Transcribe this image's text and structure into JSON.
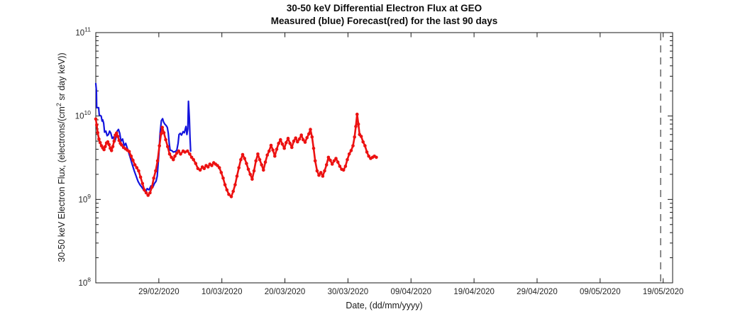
{
  "chart_data": {
    "type": "line",
    "title": "30-50 keV Differential Electron Flux at GEO",
    "subtitle": "Measured (blue) Forecast(red) for the last 90 days",
    "xlabel": "Date, (dd/mm/yyyy)",
    "ylabel": "30-50 keV Electron Flux, (electrons/(cm^2 sr day keV))",
    "ylabel_parts": {
      "pre": "30-50 keV Electron Flux, (electrons/(cm",
      "sup": "2",
      "post": " sr day keV))"
    },
    "grid": false,
    "legend_position": "none (legend encoded in subtitle)",
    "x_axis": {
      "label": "Date, (dd/mm/yyyy)",
      "epoch": "day 0 = 19/02/2020 (start of the 90-day window)",
      "domain_days": [
        0,
        91.5
      ],
      "tick_days": [
        10,
        20,
        30,
        40,
        50,
        60,
        70,
        80,
        90
      ],
      "tick_labels": [
        "29/02/2020",
        "10/03/2020",
        "20/03/2020",
        "30/03/2020",
        "09/04/2020",
        "19/04/2020",
        "29/04/2020",
        "09/05/2020",
        "19/05/2020"
      ]
    },
    "y_axis": {
      "scale": "log10",
      "exponent_range": [
        8,
        11
      ],
      "tick_exponents": [
        8,
        9,
        10,
        11
      ],
      "tick_base": "10",
      "minor_tick_multiples": [
        2,
        3,
        4,
        5,
        6,
        7,
        8,
        9
      ],
      "unit": "electrons/(cm^2 sr day keV)"
    },
    "annotations": [
      {
        "type": "vline",
        "day": 89.6,
        "style": "dashed",
        "color": "#404040",
        "dash": [
          10,
          7
        ]
      }
    ],
    "series": [
      {
        "name": "Measured",
        "color_hint": "blue",
        "color": "#1414dd",
        "marker": "line",
        "value_unit": 1000000000.0,
        "points_day_value": [
          [
            0,
            24.5
          ],
          [
            0.1,
            20
          ],
          [
            0.15,
            12.6
          ],
          [
            0.45,
            12.6
          ],
          [
            0.55,
            10.3
          ],
          [
            0.85,
            10
          ],
          [
            1,
            8.7
          ],
          [
            1.1,
            9
          ],
          [
            1.25,
            8.2
          ],
          [
            1.4,
            6.4
          ],
          [
            1.6,
            6.6
          ],
          [
            1.8,
            5.8
          ],
          [
            2,
            6
          ],
          [
            2.2,
            6.6
          ],
          [
            2.4,
            6.2
          ],
          [
            2.6,
            5.4
          ],
          [
            2.8,
            5.6
          ],
          [
            3,
            4.9
          ],
          [
            3.2,
            5.5
          ],
          [
            3.4,
            6.6
          ],
          [
            3.6,
            6.9
          ],
          [
            3.8,
            6.2
          ],
          [
            4,
            5
          ],
          [
            4.25,
            5.3
          ],
          [
            4.5,
            4.4
          ],
          [
            4.75,
            4.7
          ],
          [
            5,
            4.1
          ],
          [
            5.25,
            3.6
          ],
          [
            5.5,
            3.1
          ],
          [
            5.8,
            2.6
          ],
          [
            6.1,
            2.2
          ],
          [
            6.4,
            1.9
          ],
          [
            6.7,
            1.65
          ],
          [
            7,
            1.5
          ],
          [
            7.3,
            1.4
          ],
          [
            7.6,
            1.3
          ],
          [
            7.9,
            1.22
          ],
          [
            8.15,
            1.35
          ],
          [
            8.45,
            1.3
          ],
          [
            8.75,
            1.45
          ],
          [
            9.05,
            1.4
          ],
          [
            9.3,
            1.55
          ],
          [
            9.55,
            1.65
          ],
          [
            9.75,
            1.9
          ],
          [
            10,
            3.5
          ],
          [
            10.2,
            6.2
          ],
          [
            10.4,
            8.8
          ],
          [
            10.6,
            9.3
          ],
          [
            10.75,
            8.5
          ],
          [
            10.95,
            8
          ],
          [
            11.15,
            7.7
          ],
          [
            11.35,
            7.3
          ],
          [
            11.5,
            6.2
          ],
          [
            11.65,
            4.7
          ],
          [
            11.8,
            3.9
          ],
          [
            12.05,
            3.85
          ],
          [
            12.3,
            3.7
          ],
          [
            12.6,
            3.75
          ],
          [
            12.85,
            3.9
          ],
          [
            13.05,
            4.7
          ],
          [
            13.2,
            6
          ],
          [
            13.4,
            6.2
          ],
          [
            13.6,
            5.9
          ],
          [
            13.85,
            6.5
          ],
          [
            14.05,
            6.3
          ],
          [
            14.3,
            7.5
          ],
          [
            14.45,
            6
          ],
          [
            14.6,
            7
          ],
          [
            14.7,
            15
          ],
          [
            14.85,
            9.5
          ],
          [
            14.95,
            5.5
          ],
          [
            15.05,
            3.8
          ]
        ]
      },
      {
        "name": "Forecast",
        "color_hint": "red",
        "color": "#ec1111",
        "marker": "dots",
        "value_unit": 1000000000.0,
        "points_day_value": [
          [
            0,
            9.2
          ],
          [
            0.15,
            7.8
          ],
          [
            0.3,
            6.3
          ],
          [
            0.5,
            5.3
          ],
          [
            0.7,
            4.8
          ],
          [
            0.9,
            4.4
          ],
          [
            1.1,
            4.15
          ],
          [
            1.3,
            3.95
          ],
          [
            1.5,
            4.3
          ],
          [
            1.7,
            4.75
          ],
          [
            1.9,
            4.9
          ],
          [
            2.1,
            4.55
          ],
          [
            2.3,
            4.1
          ],
          [
            2.5,
            3.85
          ],
          [
            2.7,
            4.3
          ],
          [
            2.9,
            5
          ],
          [
            3.1,
            5.9
          ],
          [
            3.3,
            6.25
          ],
          [
            3.5,
            5.7
          ],
          [
            3.7,
            5.1
          ],
          [
            3.9,
            4.7
          ],
          [
            4.1,
            4.5
          ],
          [
            4.4,
            4.2
          ],
          [
            4.7,
            4.05
          ],
          [
            5,
            3.9
          ],
          [
            5.3,
            3.75
          ],
          [
            5.6,
            3.3
          ],
          [
            5.9,
            2.95
          ],
          [
            6.2,
            2.6
          ],
          [
            6.5,
            2.4
          ],
          [
            6.8,
            2.2
          ],
          [
            7.1,
            1.85
          ],
          [
            7.4,
            1.55
          ],
          [
            7.7,
            1.3
          ],
          [
            8,
            1.2
          ],
          [
            8.3,
            1.12
          ],
          [
            8.6,
            1.2
          ],
          [
            8.9,
            1.4
          ],
          [
            9.2,
            1.8
          ],
          [
            9.5,
            2.2
          ],
          [
            9.8,
            2.9
          ],
          [
            10.1,
            4.4
          ],
          [
            10.35,
            6.1
          ],
          [
            10.55,
            7.3
          ],
          [
            10.8,
            6.3
          ],
          [
            11.1,
            5.2
          ],
          [
            11.4,
            4.3
          ],
          [
            11.7,
            3.5
          ],
          [
            12,
            3.2
          ],
          [
            12.3,
            3
          ],
          [
            12.55,
            3.3
          ],
          [
            12.85,
            3.6
          ],
          [
            13.15,
            3.8
          ],
          [
            13.45,
            3.5
          ],
          [
            13.85,
            3.8
          ],
          [
            14.15,
            3.7
          ],
          [
            14.55,
            3.8
          ],
          [
            14.9,
            3.5
          ],
          [
            15.2,
            3.2
          ],
          [
            15.5,
            3
          ],
          [
            15.85,
            2.7
          ],
          [
            16.2,
            2.35
          ],
          [
            16.55,
            2.25
          ],
          [
            16.9,
            2.45
          ],
          [
            17.2,
            2.35
          ],
          [
            17.5,
            2.55
          ],
          [
            17.8,
            2.45
          ],
          [
            18.1,
            2.65
          ],
          [
            18.4,
            2.55
          ],
          [
            18.7,
            2.75
          ],
          [
            19,
            2.65
          ],
          [
            19.3,
            2.55
          ],
          [
            19.6,
            2.4
          ],
          [
            19.9,
            2.1
          ],
          [
            20.2,
            1.8
          ],
          [
            20.5,
            1.5
          ],
          [
            20.8,
            1.3
          ],
          [
            21.1,
            1.15
          ],
          [
            21.5,
            1.08
          ],
          [
            21.8,
            1.25
          ],
          [
            22.1,
            1.5
          ],
          [
            22.4,
            1.9
          ],
          [
            22.7,
            2.4
          ],
          [
            23,
            3
          ],
          [
            23.3,
            3.45
          ],
          [
            23.6,
            3.1
          ],
          [
            23.9,
            2.7
          ],
          [
            24.2,
            2.3
          ],
          [
            24.5,
            2
          ],
          [
            24.8,
            1.75
          ],
          [
            25.1,
            2.2
          ],
          [
            25.4,
            2.9
          ],
          [
            25.7,
            3.5
          ],
          [
            26,
            3
          ],
          [
            26.3,
            2.6
          ],
          [
            26.6,
            2.25
          ],
          [
            26.9,
            2.8
          ],
          [
            27.2,
            3.4
          ],
          [
            27.5,
            3.8
          ],
          [
            27.8,
            4.45
          ],
          [
            28.1,
            3.9
          ],
          [
            28.4,
            3.3
          ],
          [
            28.7,
            4
          ],
          [
            29,
            4.7
          ],
          [
            29.3,
            5.2
          ],
          [
            29.6,
            4.6
          ],
          [
            29.9,
            4.1
          ],
          [
            30.2,
            4.8
          ],
          [
            30.5,
            5.4
          ],
          [
            30.8,
            4.7
          ],
          [
            31.1,
            4.2
          ],
          [
            31.4,
            5
          ],
          [
            31.7,
            5.45
          ],
          [
            32,
            4.9
          ],
          [
            32.3,
            5.3
          ],
          [
            32.6,
            5.9
          ],
          [
            32.9,
            5.2
          ],
          [
            33.2,
            4.85
          ],
          [
            33.5,
            5.5
          ],
          [
            33.8,
            6.1
          ],
          [
            34.05,
            6.9
          ],
          [
            34.3,
            5.6
          ],
          [
            34.55,
            4.1
          ],
          [
            34.8,
            2.9
          ],
          [
            35.1,
            2.2
          ],
          [
            35.4,
            1.95
          ],
          [
            35.7,
            2.1
          ],
          [
            36,
            1.9
          ],
          [
            36.3,
            2.2
          ],
          [
            36.6,
            2.6
          ],
          [
            36.9,
            3.2
          ],
          [
            37.2,
            2.95
          ],
          [
            37.5,
            2.65
          ],
          [
            37.8,
            2.9
          ],
          [
            38.1,
            3.1
          ],
          [
            38.4,
            2.8
          ],
          [
            38.7,
            2.5
          ],
          [
            39,
            2.3
          ],
          [
            39.3,
            2.25
          ],
          [
            39.6,
            2.5
          ],
          [
            39.9,
            3
          ],
          [
            40.2,
            3.5
          ],
          [
            40.5,
            3.85
          ],
          [
            40.8,
            4.4
          ],
          [
            41.05,
            5.6
          ],
          [
            41.25,
            7.5
          ],
          [
            41.45,
            10.5
          ],
          [
            41.65,
            8
          ],
          [
            41.85,
            6
          ],
          [
            42.1,
            5.7
          ],
          [
            42.4,
            4.9
          ],
          [
            42.7,
            4.4
          ],
          [
            43,
            3.7
          ],
          [
            43.3,
            3.3
          ],
          [
            43.6,
            3.1
          ],
          [
            43.9,
            3.2
          ],
          [
            44.2,
            3.3
          ],
          [
            44.5,
            3.2
          ]
        ]
      }
    ],
    "colors": {
      "axis": "#1a1a1a",
      "tick_text": "#262626",
      "background": "#ffffff"
    }
  }
}
